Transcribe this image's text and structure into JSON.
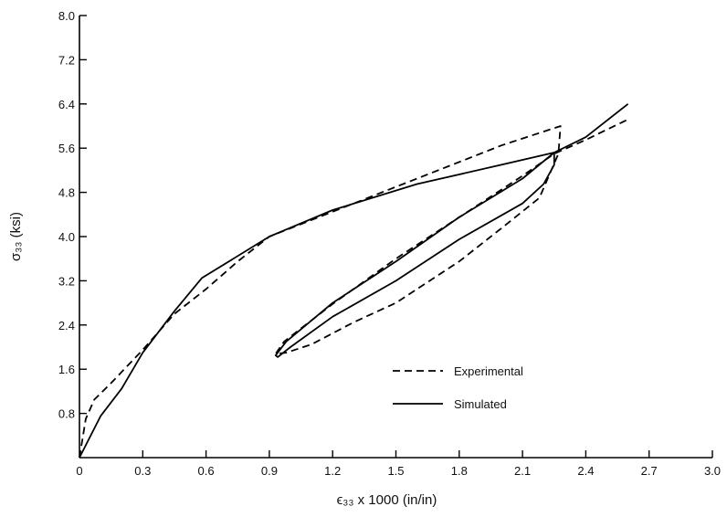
{
  "chart_data": {
    "type": "line",
    "title": "",
    "xlabel": "ϵ₃₃ x 1000 (in/in)",
    "ylabel": "σ₃₃ (ksi)",
    "xlim": [
      0,
      3.0
    ],
    "ylim": [
      0,
      8.0
    ],
    "x_ticks": [
      "0",
      "0.3",
      "0.6",
      "0.9",
      "1.2",
      "1.5",
      "1.8",
      "2.1",
      "2.4",
      "2.7",
      "3.0"
    ],
    "y_ticks": [
      "0",
      "0.8",
      "1.6",
      "2.4",
      "3.2",
      "4.0",
      "4.8",
      "5.6",
      "6.4",
      "7.2",
      "8.0"
    ],
    "grid": false,
    "legend_position": "lower-right",
    "series": [
      {
        "name": "Experimental",
        "style": "dashed",
        "color": "#000000",
        "points": [
          [
            0,
            0
          ],
          [
            0.03,
            0.7
          ],
          [
            0.07,
            1.05
          ],
          [
            0.15,
            1.35
          ],
          [
            0.3,
            1.95
          ],
          [
            0.45,
            2.6
          ],
          [
            0.6,
            3.05
          ],
          [
            0.75,
            3.55
          ],
          [
            0.9,
            4.0
          ],
          [
            1.2,
            4.45
          ],
          [
            1.6,
            5.05
          ],
          [
            2.0,
            5.65
          ],
          [
            2.28,
            6.0
          ],
          [
            2.27,
            5.5
          ],
          [
            2.18,
            4.7
          ],
          [
            2.0,
            4.15
          ],
          [
            1.8,
            3.55
          ],
          [
            1.5,
            2.8
          ],
          [
            1.3,
            2.45
          ],
          [
            1.1,
            2.05
          ],
          [
            0.98,
            1.9
          ],
          [
            0.93,
            1.88
          ],
          [
            0.97,
            2.1
          ],
          [
            1.2,
            2.78
          ],
          [
            1.5,
            3.6
          ],
          [
            1.8,
            4.35
          ],
          [
            2.1,
            5.1
          ],
          [
            2.25,
            5.5
          ],
          [
            2.4,
            5.75
          ],
          [
            2.6,
            6.12
          ]
        ]
      },
      {
        "name": "Simulated",
        "style": "solid",
        "color": "#000000",
        "points": [
          [
            0,
            0
          ],
          [
            0.1,
            0.75
          ],
          [
            0.2,
            1.25
          ],
          [
            0.3,
            1.9
          ],
          [
            0.45,
            2.65
          ],
          [
            0.58,
            3.25
          ],
          [
            0.9,
            4.0
          ],
          [
            1.2,
            4.48
          ],
          [
            1.6,
            4.95
          ],
          [
            2.0,
            5.3
          ],
          [
            2.25,
            5.52
          ],
          [
            2.25,
            5.3
          ],
          [
            2.2,
            4.95
          ],
          [
            2.1,
            4.6
          ],
          [
            1.8,
            3.95
          ],
          [
            1.5,
            3.2
          ],
          [
            1.2,
            2.55
          ],
          [
            1.0,
            2.0
          ],
          [
            0.94,
            1.82
          ],
          [
            0.93,
            1.85
          ],
          [
            0.98,
            2.1
          ],
          [
            1.2,
            2.8
          ],
          [
            1.5,
            3.55
          ],
          [
            1.8,
            4.35
          ],
          [
            2.1,
            5.05
          ],
          [
            2.25,
            5.52
          ],
          [
            2.4,
            5.8
          ],
          [
            2.6,
            6.4
          ]
        ]
      }
    ]
  }
}
